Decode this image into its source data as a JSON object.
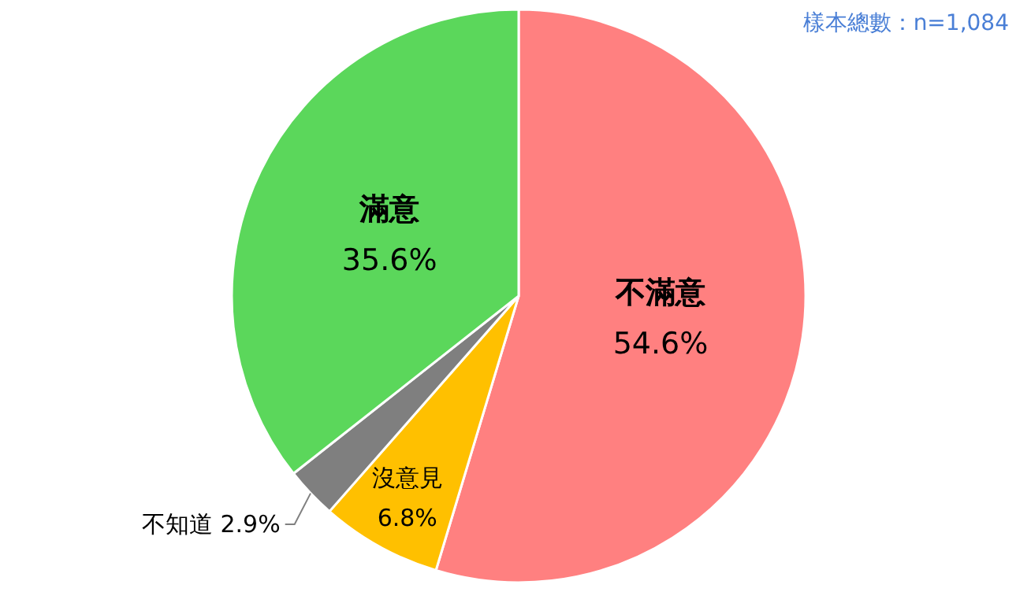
{
  "chart_data": {
    "type": "pie",
    "categories": [
      "不滿意",
      "沒意見",
      "不知道",
      "滿意"
    ],
    "values": [
      54.6,
      6.8,
      2.9,
      35.6
    ],
    "colors": [
      "#ff8080",
      "#ffc000",
      "#7f7f7f",
      "#5bd75b"
    ],
    "value_labels": [
      "54.6%",
      "6.8%",
      "2.9%",
      "35.6%"
    ],
    "annotations": [
      "樣本總數：n=1,084"
    ],
    "legend": false
  }
}
